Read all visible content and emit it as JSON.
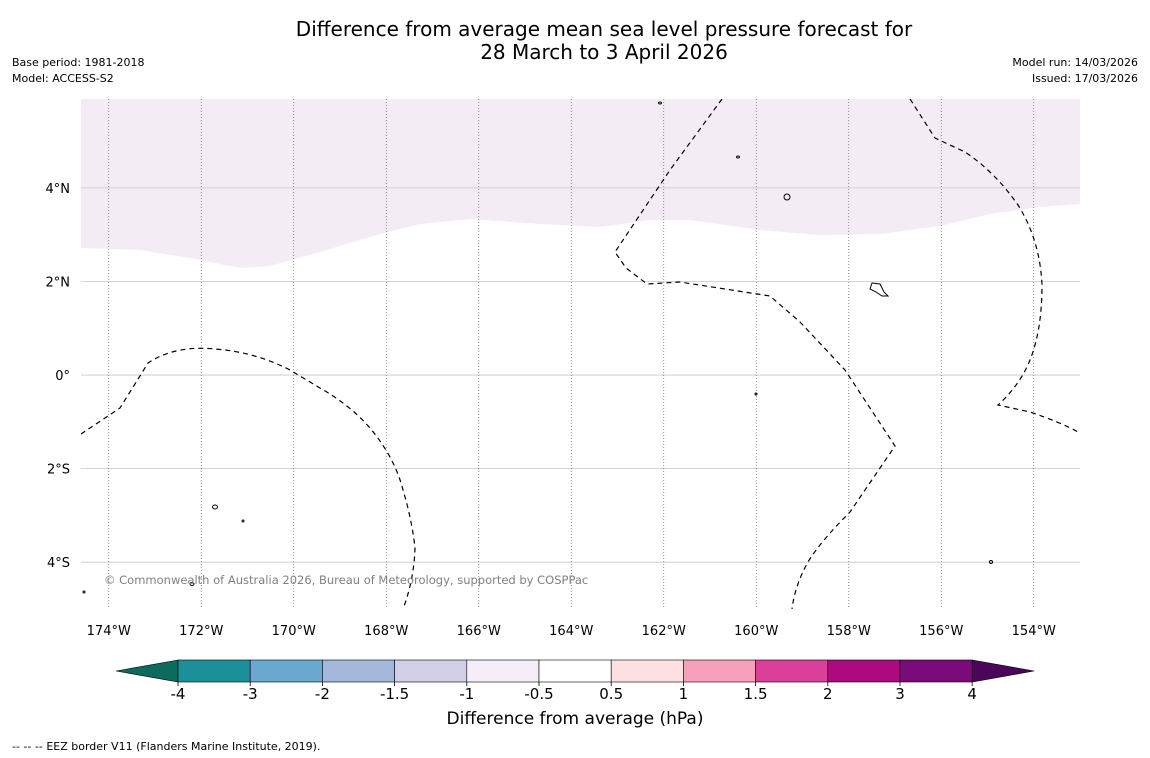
{
  "header": {
    "title_line1": "Difference from average mean sea level pressure forecast for",
    "title_line2": "28 March to 3 April 2026",
    "base_period": "Base period: 1981-2018",
    "model": "Model: ACCESS-S2",
    "model_run": "Model run: 14/03/2026",
    "issued": "Issued: 17/03/2026"
  },
  "map": {
    "lon_labels": [
      "174°W",
      "172°W",
      "170°W",
      "168°W",
      "166°W",
      "164°W",
      "162°W",
      "160°W",
      "158°W",
      "156°W",
      "154°W"
    ],
    "lat_labels": [
      "4°N",
      "2°N",
      "0°",
      "2°S",
      "4°S"
    ],
    "lon_range": [
      -174.6,
      -153.0
    ],
    "lat_range": [
      -5.0,
      5.9
    ],
    "shaded_region": {
      "category": "-1 to -0.5",
      "color": "#f3ecf5"
    },
    "copyright": "© Commonwealth of Australia 2026, Bureau of Meteorology, supported by COSPPac"
  },
  "colorbar": {
    "tick_labels": [
      "-4",
      "-3",
      "-2",
      "-1.5",
      "-1",
      "-0.5",
      "0.5",
      "1",
      "1.5",
      "2",
      "3",
      "4"
    ],
    "colors": [
      "#0d6b5e",
      "#1b9099",
      "#6aa8cf",
      "#a5b7d9",
      "#d0cfe6",
      "#f5eef8",
      "#ffffff",
      "#fde0e2",
      "#f7a0bb",
      "#dc3f9a",
      "#ad0a80",
      "#7c0b7a",
      "#4b0559"
    ],
    "label": "Difference from average (hPa)"
  },
  "footer": {
    "legend_symbol": "--  --  --",
    "legend_text": "EEZ border V11 (Flanders Marine Institute, 2019)."
  }
}
